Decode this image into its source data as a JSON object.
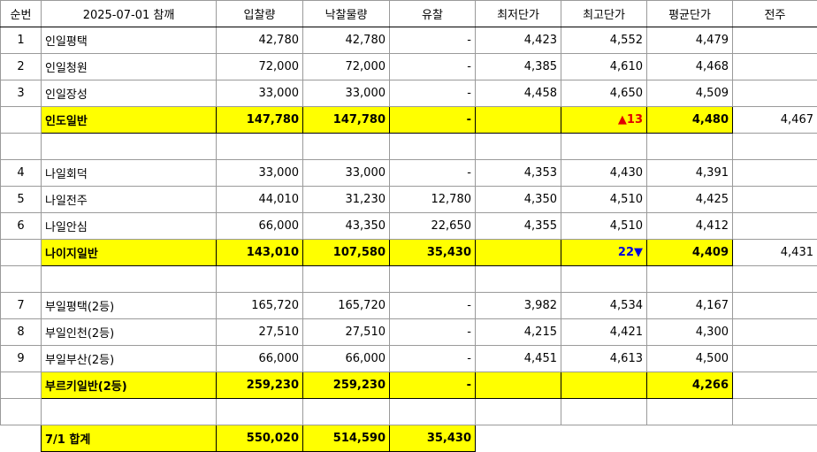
{
  "table": {
    "header": [
      "순번",
      "2025-07-01 참깨",
      "입찰량",
      "낙찰물량",
      "유찰",
      "최저단가",
      "최고단가",
      "평균단가",
      "전주"
    ],
    "rows": [
      [
        "1",
        "인일평택",
        "42,780",
        "42,780",
        "-",
        "4,423",
        "4,552",
        "4,479",
        null
      ],
      [
        "2",
        "인일청원",
        "72,000",
        "72,000",
        "-",
        "4,385",
        "4,610",
        "4,468",
        null
      ],
      [
        "3",
        "인일장성",
        "33,000",
        "33,000",
        "-",
        "4,458",
        "4,650",
        "4,509",
        null
      ],
      [
        null,
        "인도일반",
        "147,780",
        "147,780",
        "-",
        null,
        "▲13",
        "4,480",
        "4,467"
      ],
      [
        "4",
        "나일회덕",
        "33,000",
        "33,000",
        "-",
        "4,353",
        "4,430",
        "4,391",
        null
      ],
      [
        "5",
        "나일전주",
        "44,010",
        "31,230",
        "12,780",
        "4,350",
        "4,510",
        "4,425",
        null
      ],
      [
        "6",
        "나일안심",
        "66,000",
        "43,350",
        "22,650",
        "4,355",
        "4,510",
        "4,412",
        null
      ],
      [
        null,
        "나이지일반",
        "143,010",
        "107,580",
        "35,430",
        null,
        "22▼",
        "4,409",
        "4,431"
      ],
      [
        "7",
        "부일평택(2등)",
        "165,720",
        "165,720",
        "-",
        "3,982",
        "4,534",
        "4,167",
        null
      ],
      [
        "8",
        "부일인천(2등)",
        "27,510",
        "27,510",
        "-",
        "4,215",
        "4,421",
        "4,300",
        null
      ],
      [
        "9",
        "부일부산(2등)",
        "66,000",
        "66,000",
        "-",
        "4,451",
        "4,613",
        "4,500",
        null
      ],
      [
        null,
        "부르키일반(2등)",
        "259,230",
        "259,230",
        "-",
        null,
        null,
        "4,266",
        null
      ],
      [
        null,
        "7/1 합계",
        "550,020",
        "514,590",
        "35,430",
        null,
        null,
        null,
        null
      ]
    ]
  }
}
